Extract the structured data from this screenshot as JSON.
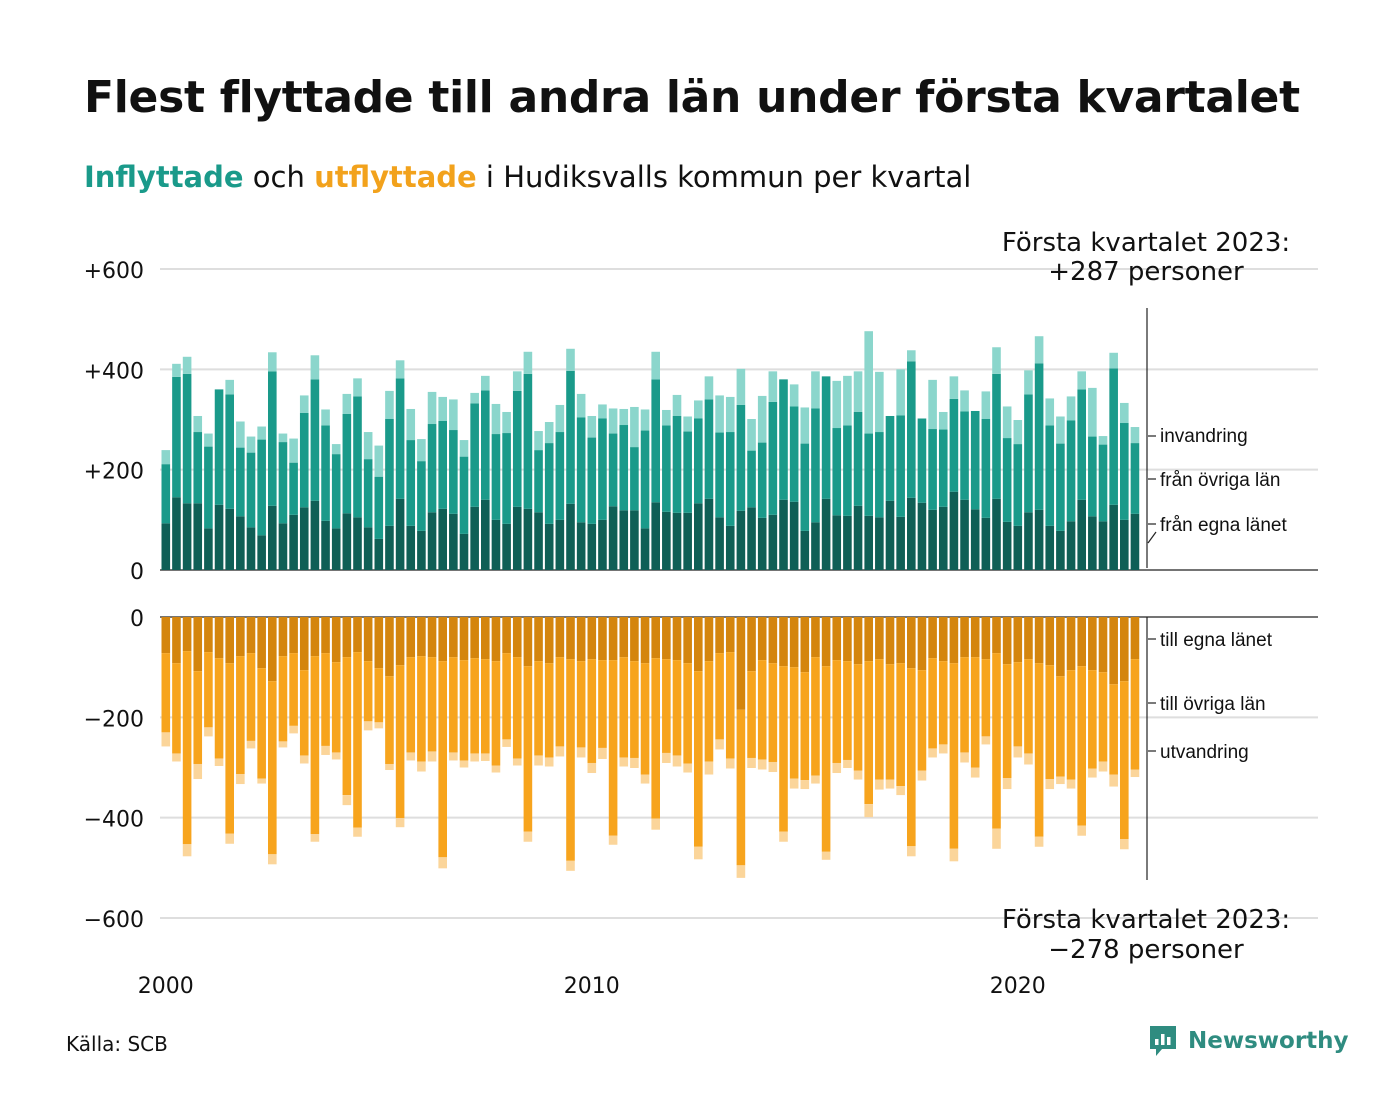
{
  "title": "Flest flyttade till andra län under första kvartalet",
  "subtitle": {
    "part1": "Inflyttade",
    "part2": " och ",
    "part3": "utflyttade",
    "part4": " i Hudiksvalls kommun per kvartal"
  },
  "source": "Källa: SCB",
  "brand": "Newsworthy",
  "annotations": {
    "top_line1": "Första kvartalet 2023:",
    "top_line2": "+287 personer",
    "bottom_line1": "Första kvartalet 2023:",
    "bottom_line2": "−278 personer"
  },
  "colors": {
    "in_egna": "#0f5f56",
    "in_ovriga": "#1a9a8a",
    "in_invandring": "#8bd6cc",
    "out_egna": "#d4850d",
    "out_ovriga": "#f7a41d",
    "out_utvandring": "#fbd59a"
  },
  "chart_data": {
    "type": "bar",
    "x_start": "2000 Q1",
    "xticks": [
      "2000",
      "2010",
      "2020"
    ],
    "yticks_top": [
      "+600",
      "+400",
      "+200",
      "0"
    ],
    "yticks_bottom": [
      "0",
      "−200",
      "−400",
      "−600"
    ],
    "ylim": [
      -600,
      600
    ],
    "inflow_series": [
      {
        "name": "från egna länet",
        "values": [
          93,
          145,
          133,
          133,
          83,
          130,
          122,
          107,
          85,
          69,
          128,
          93,
          110,
          125,
          138,
          98,
          83,
          113,
          105,
          85,
          62,
          88,
          142,
          88,
          78,
          115,
          122,
          112,
          72,
          126,
          140,
          100,
          92,
          126,
          122,
          115,
          92,
          100,
          132,
          95,
          92,
          100,
          127,
          119,
          119,
          83,
          135,
          116,
          114,
          114,
          133,
          142,
          105,
          88,
          118,
          125,
          104,
          110,
          140,
          136,
          78,
          95,
          142,
          109,
          108,
          128,
          108,
          105,
          138,
          106,
          144,
          134,
          120,
          126,
          156,
          140,
          121,
          104,
          142,
          96,
          88,
          115,
          120,
          88,
          78,
          97,
          140,
          107,
          97,
          130,
          100,
          112
        ]
      },
      {
        "name": "från övriga län",
        "values": [
          118,
          240,
          258,
          142,
          163,
          230,
          228,
          137,
          149,
          191,
          268,
          162,
          104,
          188,
          242,
          190,
          148,
          198,
          241,
          136,
          124,
          213,
          240,
          171,
          139,
          176,
          175,
          167,
          154,
          206,
          218,
          171,
          181,
          231,
          269,
          124,
          161,
          175,
          265,
          209,
          172,
          202,
          145,
          170,
          126,
          195,
          245,
          172,
          193,
          162,
          169,
          198,
          169,
          187,
          211,
          113,
          150,
          225,
          240,
          190,
          174,
          227,
          244,
          174,
          180,
          187,
          164,
          170,
          169,
          202,
          272,
          168,
          161,
          154,
          185,
          176,
          196,
          197,
          249,
          167,
          163,
          235,
          292,
          200,
          174,
          201,
          220,
          159,
          153,
          272,
          193,
          141
        ]
      },
      {
        "name": "invandring",
        "values": [
          28,
          26,
          34,
          32,
          26,
          0,
          29,
          52,
          32,
          26,
          38,
          17,
          48,
          35,
          48,
          32,
          20,
          40,
          36,
          54,
          62,
          56,
          36,
          62,
          44,
          64,
          48,
          61,
          33,
          21,
          29,
          60,
          42,
          39,
          44,
          38,
          42,
          54,
          44,
          47,
          43,
          28,
          50,
          32,
          80,
          42,
          55,
          31,
          42,
          30,
          36,
          46,
          74,
          70,
          72,
          63,
          93,
          61,
          0,
          44,
          72,
          74,
          0,
          94,
          99,
          81,
          204,
          120,
          0,
          92,
          22,
          0,
          98,
          35,
          45,
          42,
          0,
          55,
          53,
          63,
          48,
          48,
          54,
          54,
          54,
          48,
          36,
          97,
          17,
          31,
          40,
          32
        ]
      }
    ],
    "outflow_series": [
      {
        "name": "till egna länet",
        "values": [
          -72,
          -92,
          -68,
          -108,
          -70,
          -82,
          -92,
          -78,
          -72,
          -102,
          -128,
          -78,
          -72,
          -106,
          -78,
          -72,
          -90,
          -80,
          -70,
          -88,
          -102,
          -118,
          -96,
          -80,
          -78,
          -80,
          -88,
          -80,
          -86,
          -82,
          -84,
          -88,
          -72,
          -80,
          -98,
          -88,
          -92,
          -80,
          -84,
          -88,
          -84,
          -86,
          -86,
          -80,
          -88,
          -92,
          -82,
          -84,
          -86,
          -92,
          -108,
          -88,
          -72,
          -70,
          -185,
          -108,
          -86,
          -92,
          -98,
          -100,
          -110,
          -80,
          -98,
          -86,
          -88,
          -94,
          -88,
          -84,
          -94,
          -92,
          -102,
          -106,
          -82,
          -88,
          -92,
          -80,
          -80,
          -84,
          -72,
          -94,
          -90,
          -84,
          -92,
          -96,
          -118,
          -106,
          -98,
          -106,
          -110,
          -134,
          -128,
          -84
        ]
      },
      {
        "name": "till övriga län",
        "values": [
          -158,
          -180,
          -385,
          -185,
          -150,
          -200,
          -340,
          -235,
          -175,
          -220,
          -345,
          -170,
          -145,
          -170,
          -355,
          -185,
          -180,
          -275,
          -350,
          -120,
          -108,
          -175,
          -305,
          -190,
          -210,
          -188,
          -391,
          -190,
          -200,
          -190,
          -188,
          -208,
          -172,
          -202,
          -330,
          -188,
          -188,
          -178,
          -402,
          -172,
          -207,
          -175,
          -350,
          -200,
          -193,
          -222,
          -320,
          -187,
          -190,
          -200,
          -350,
          -200,
          -172,
          -212,
          -310,
          -173,
          -198,
          -197,
          -330,
          -222,
          -215,
          -236,
          -370,
          -205,
          -197,
          -212,
          -285,
          -240,
          -230,
          -245,
          -355,
          -200,
          -180,
          -166,
          -370,
          -190,
          -220,
          -154,
          -350,
          -227,
          -168,
          -188,
          -346,
          -227,
          -200,
          -218,
          -318,
          -196,
          -178,
          -180,
          -315,
          -220
        ]
      },
      {
        "name": "utvandring",
        "values": [
          -28,
          -16,
          -24,
          -30,
          -18,
          -15,
          -20,
          -20,
          -15,
          -10,
          -20,
          -12,
          -15,
          -16,
          -15,
          -18,
          -14,
          -20,
          -18,
          -18,
          -12,
          -12,
          -18,
          -16,
          -20,
          -20,
          -22,
          -16,
          -14,
          -16,
          -15,
          -14,
          -15,
          -14,
          -20,
          -20,
          -18,
          -20,
          -20,
          -20,
          -20,
          -22,
          -18,
          -18,
          -20,
          -18,
          -22,
          -20,
          -22,
          -18,
          -25,
          -26,
          -20,
          -20,
          -25,
          -20,
          -20,
          -20,
          -20,
          -20,
          -18,
          -16,
          -16,
          -20,
          -16,
          -18,
          -26,
          -20,
          -18,
          -18,
          -20,
          -20,
          -18,
          -18,
          -25,
          -20,
          -20,
          -16,
          -40,
          -22,
          -22,
          -22,
          -20,
          -20,
          -15,
          -18,
          -20,
          -18,
          -20,
          -24,
          -20,
          -15
        ]
      }
    ]
  }
}
